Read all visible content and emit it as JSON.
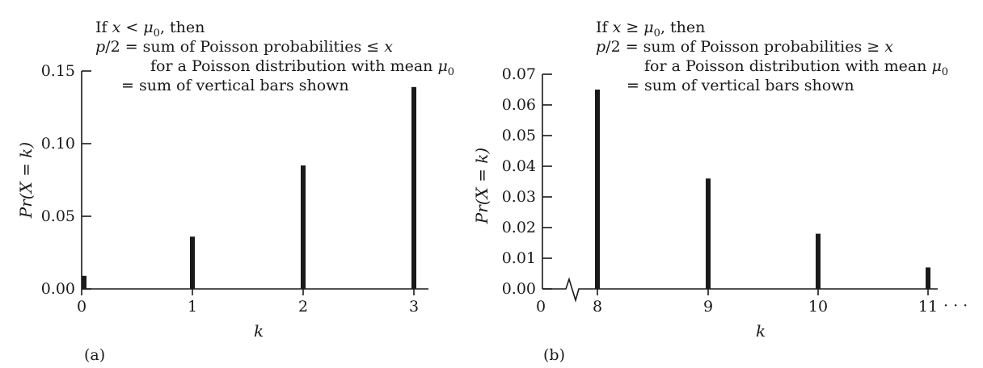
{
  "chart_data": [
    {
      "type": "bar",
      "panel_label": "(a)",
      "x": [
        0,
        1,
        2,
        3
      ],
      "values": [
        0.009,
        0.036,
        0.085,
        0.139
      ],
      "xticks": [
        "0",
        "1",
        "2",
        "3"
      ],
      "yticks": [
        "0.00",
        "0.05",
        "0.10",
        "0.15"
      ],
      "ylim": [
        0,
        0.15
      ],
      "xlabel": "k",
      "ylabel": "Pr(X = k)",
      "annotation": {
        "line1": "If x < μ0, then",
        "line2": "p/2 = sum of Poisson probabilities ≤ x",
        "line3": "for a Poisson distribution with mean μ0",
        "line4": "= sum of vertical bars shown"
      }
    },
    {
      "type": "bar",
      "panel_label": "(b)",
      "x": [
        8,
        9,
        10,
        11
      ],
      "values": [
        0.065,
        0.036,
        0.018,
        0.007
      ],
      "xticks": [
        "0",
        "8",
        "9",
        "10",
        "11"
      ],
      "axis_break": true,
      "ellipsis": "· · ·",
      "yticks": [
        "0.00",
        "0.01",
        "0.02",
        "0.03",
        "0.04",
        "0.05",
        "0.06",
        "0.07"
      ],
      "ylim": [
        0,
        0.07
      ],
      "xlabel": "k",
      "ylabel": "Pr(X = k)",
      "annotation": {
        "line1": "If x ≥ μ0, then",
        "line2": "p/2 = sum of Poisson probabilities ≥ x",
        "line3": "for a Poisson distribution with mean μ0",
        "line4": "= sum of vertical bars shown"
      }
    }
  ]
}
